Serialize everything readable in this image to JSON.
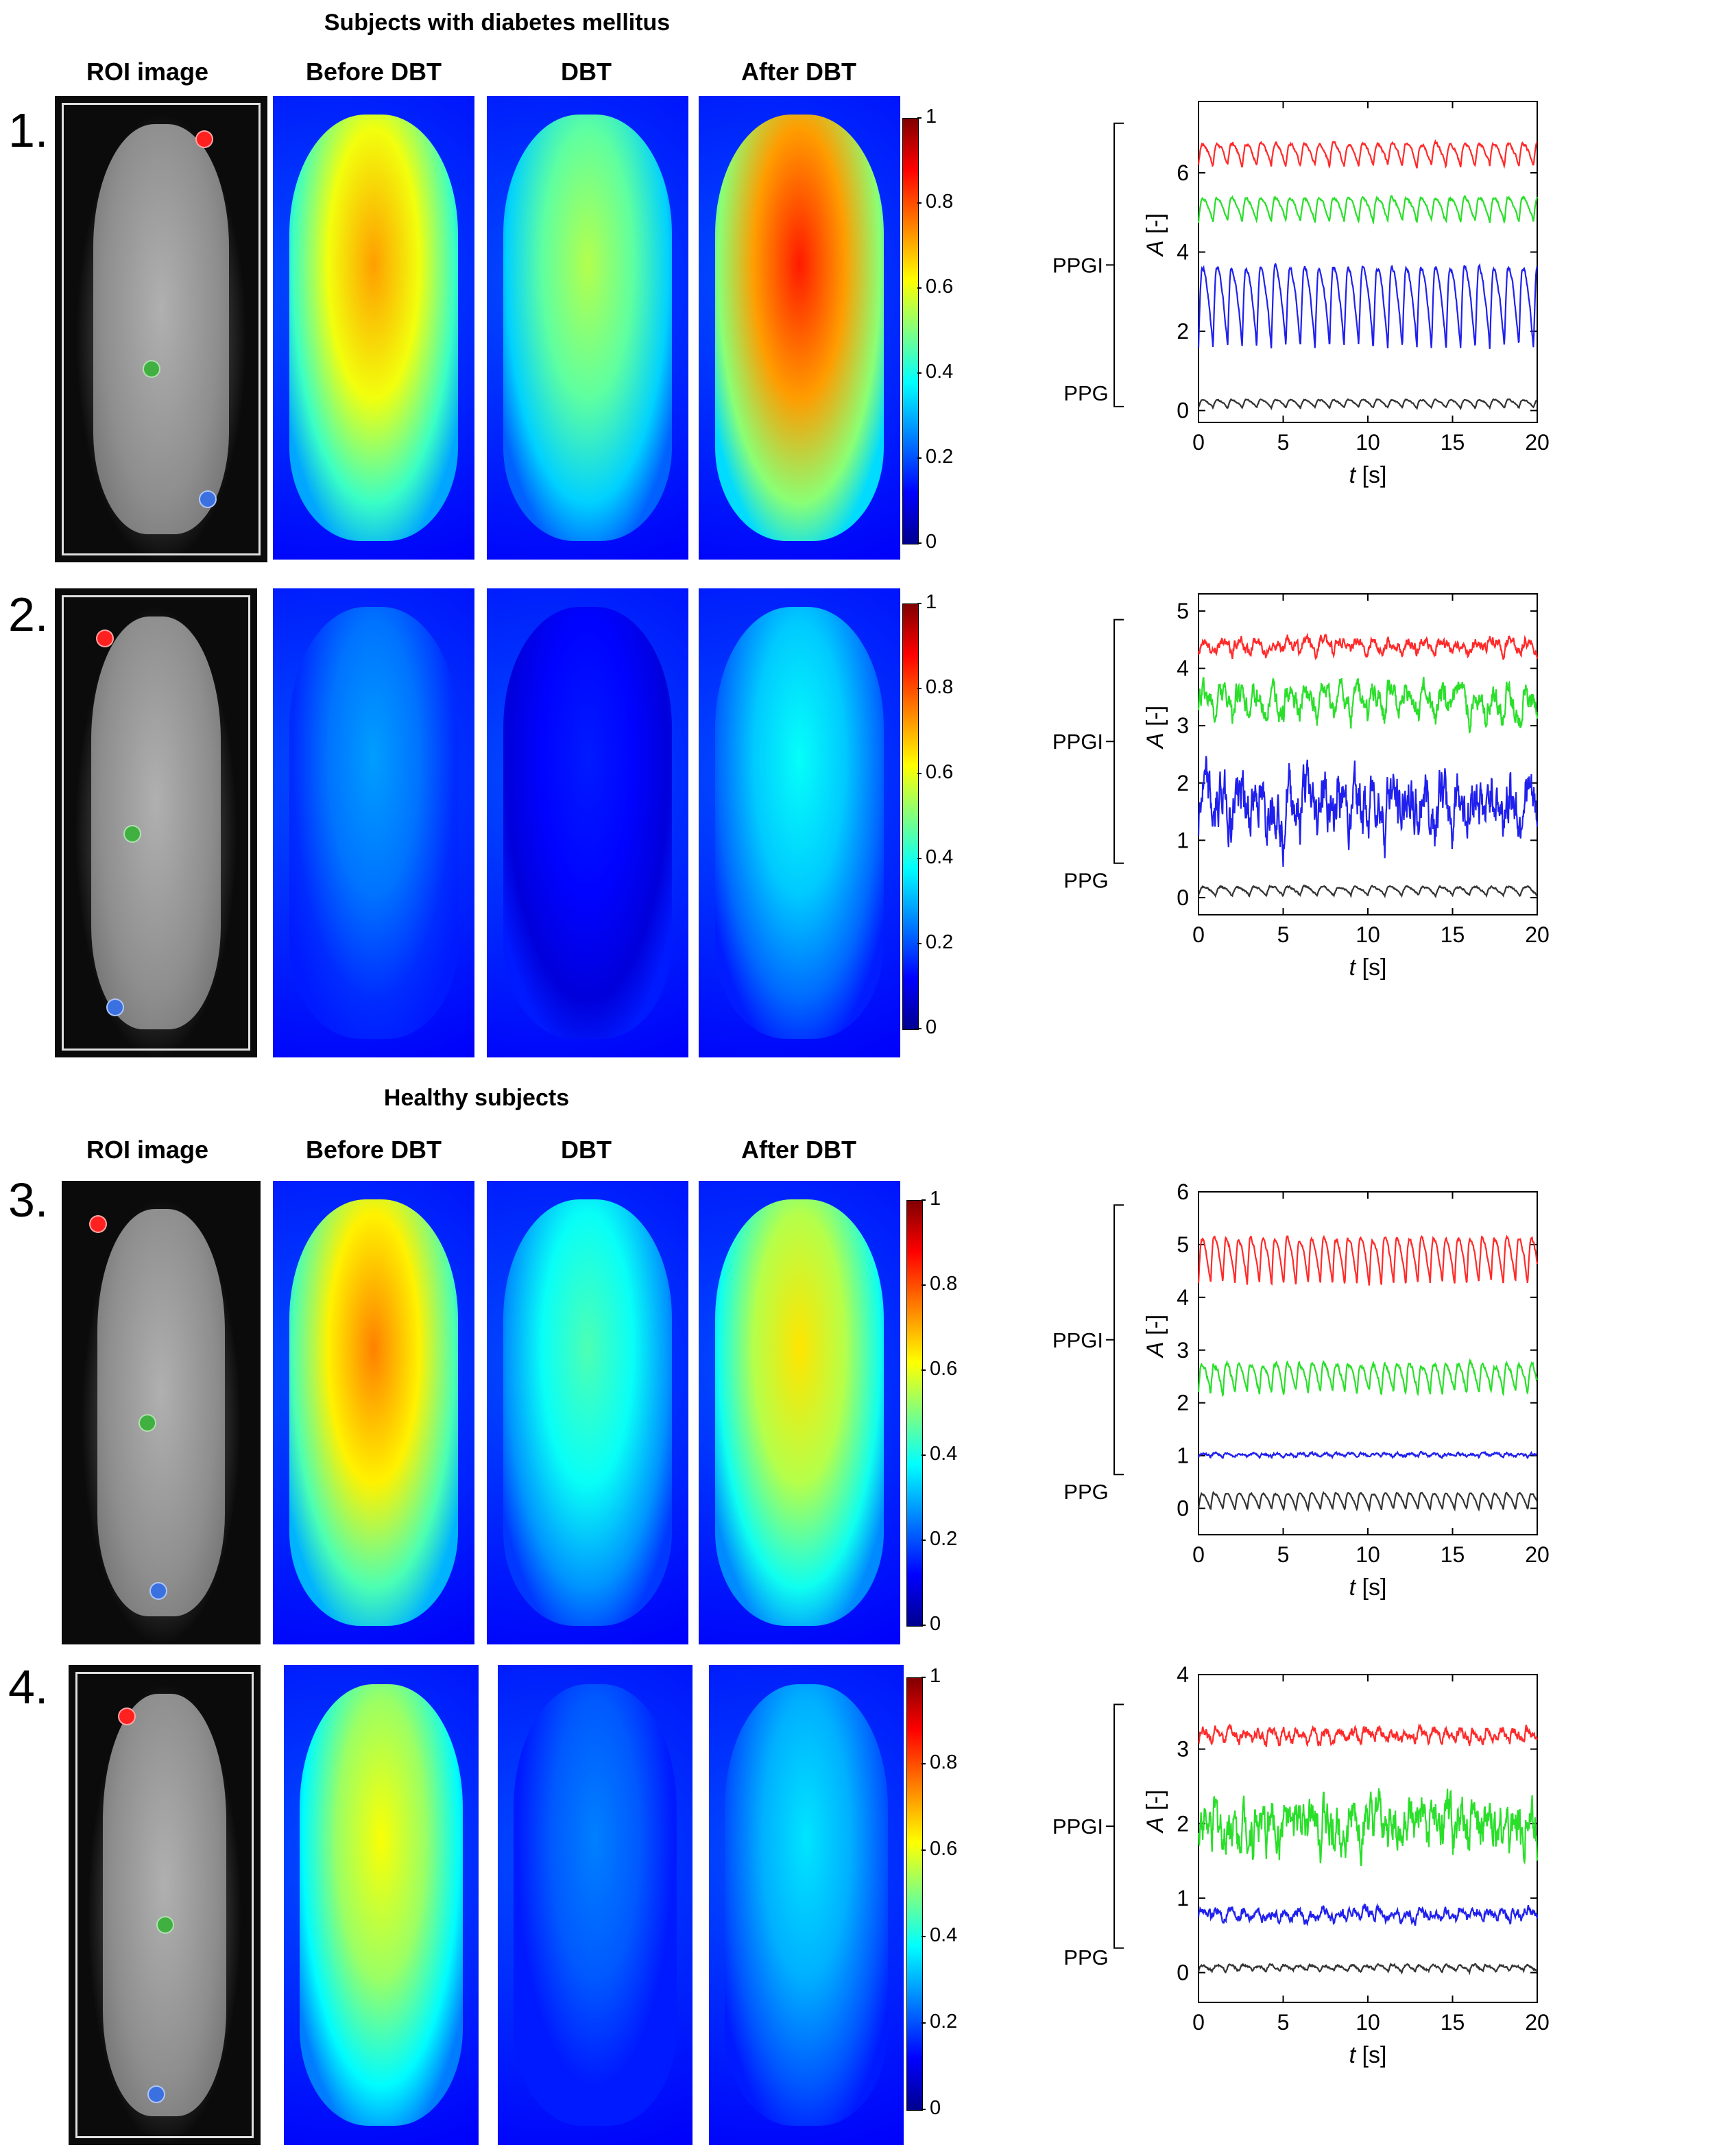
{
  "groups": {
    "diabetes_title": "Subjects with diabetes mellitus",
    "healthy_title": "Healthy subjects"
  },
  "columns": {
    "roi": "ROI image",
    "before": "Before DBT",
    "dbt": "DBT",
    "after": "After DBT"
  },
  "rows": [
    {
      "number": "1.",
      "intensity": {
        "before": 0.72,
        "dbt": 0.55,
        "after": 0.85
      }
    },
    {
      "number": "2.",
      "intensity": {
        "before": 0.28,
        "dbt": 0.15,
        "after": 0.38
      }
    },
    {
      "number": "3.",
      "intensity": {
        "before": 0.75,
        "dbt": 0.45,
        "after": 0.65
      }
    },
    {
      "number": "4.",
      "intensity": {
        "before": 0.62,
        "dbt": 0.25,
        "after": 0.35
      }
    }
  ],
  "colorbar": {
    "ticks": [
      "0",
      "0.2",
      "0.4",
      "0.6",
      "0.8",
      "1"
    ],
    "colormap": "jet"
  },
  "dot_colors": {
    "toe": "#ff2020",
    "mid": "#40b040",
    "heel": "#3a70e0"
  },
  "trace_colors": {
    "red": "#ff2a2a",
    "green": "#2adf2a",
    "blue": "#2020ee",
    "ppg": "#333333"
  },
  "chart_data": [
    {
      "type": "line",
      "xlabel": "t [s]",
      "ylabel": "A [-]",
      "xlim": [
        0,
        20
      ],
      "ylim": [
        -0.3,
        7.8
      ],
      "xticks": [
        "0",
        "5",
        "10",
        "15",
        "20"
      ],
      "yticks": [
        "0",
        "2",
        "4",
        "6"
      ],
      "brace_labels": {
        "ppgi": "PPGI",
        "ppg": "PPG"
      },
      "series": [
        {
          "color": "red",
          "baseline": 6.4,
          "amplitude": 0.55,
          "period": 0.86,
          "noise": 0.05
        },
        {
          "color": "green",
          "baseline": 5.0,
          "amplitude": 0.6,
          "period": 0.86,
          "noise": 0.05
        },
        {
          "color": "blue",
          "baseline": 2.4,
          "amplitude": 2.0,
          "period": 0.86,
          "noise": 0.08
        },
        {
          "color": "ppg",
          "baseline": 0.15,
          "amplitude": 0.2,
          "period": 0.86,
          "noise": 0.02
        }
      ]
    },
    {
      "type": "line",
      "xlabel": "t [s]",
      "ylabel": "A [-]",
      "xlim": [
        0,
        20
      ],
      "ylim": [
        -0.3,
        5.3
      ],
      "xticks": [
        "0",
        "5",
        "10",
        "15",
        "20"
      ],
      "yticks": [
        "0",
        "1",
        "2",
        "3",
        "4",
        "5"
      ],
      "brace_labels": {
        "ppgi": "PPGI",
        "ppg": "PPG"
      },
      "series": [
        {
          "color": "red",
          "baseline": 4.35,
          "amplitude": 0.2,
          "period": 1.0,
          "noise": 0.12
        },
        {
          "color": "green",
          "baseline": 3.3,
          "amplitude": 0.45,
          "period": 1.0,
          "noise": 0.25
        },
        {
          "color": "blue",
          "baseline": 1.5,
          "amplitude": 0.6,
          "period": 1.0,
          "noise": 0.55
        },
        {
          "color": "ppg",
          "baseline": 0.1,
          "amplitude": 0.15,
          "period": 1.0,
          "noise": 0.02
        }
      ]
    },
    {
      "type": "line",
      "xlabel": "t [s]",
      "ylabel": "A [-]",
      "xlim": [
        0,
        20
      ],
      "ylim": [
        -0.5,
        6.0
      ],
      "xticks": [
        "0",
        "5",
        "10",
        "15",
        "20"
      ],
      "yticks": [
        "0",
        "1",
        "2",
        "3",
        "4",
        "5",
        "6"
      ],
      "brace_labels": {
        "ppgi": "PPGI",
        "ppg": "PPG"
      },
      "series": [
        {
          "color": "red",
          "baseline": 4.6,
          "amplitude": 0.85,
          "period": 0.72,
          "noise": 0.05
        },
        {
          "color": "green",
          "baseline": 2.4,
          "amplitude": 0.55,
          "period": 0.72,
          "noise": 0.06
        },
        {
          "color": "blue",
          "baseline": 1.0,
          "amplitude": 0.06,
          "period": 0.72,
          "noise": 0.03
        },
        {
          "color": "ppg",
          "baseline": 0.1,
          "amplitude": 0.3,
          "period": 0.72,
          "noise": 0.02
        }
      ]
    },
    {
      "type": "line",
      "xlabel": "t [s]",
      "ylabel": "A [-]",
      "xlim": [
        0,
        20
      ],
      "ylim": [
        -0.4,
        4.0
      ],
      "xticks": [
        "0",
        "5",
        "10",
        "15",
        "20"
      ],
      "yticks": [
        "0",
        "1",
        "2",
        "3",
        "4"
      ],
      "brace_labels": {
        "ppgi": "PPGI",
        "ppg": "PPG"
      },
      "series": [
        {
          "color": "red",
          "baseline": 3.15,
          "amplitude": 0.15,
          "period": 0.8,
          "noise": 0.08
        },
        {
          "color": "green",
          "baseline": 1.9,
          "amplitude": 0.3,
          "period": 0.8,
          "noise": 0.35
        },
        {
          "color": "blue",
          "baseline": 0.75,
          "amplitude": 0.12,
          "period": 0.8,
          "noise": 0.08
        },
        {
          "color": "ppg",
          "baseline": 0.05,
          "amplitude": 0.08,
          "period": 0.8,
          "noise": 0.02
        }
      ]
    }
  ]
}
